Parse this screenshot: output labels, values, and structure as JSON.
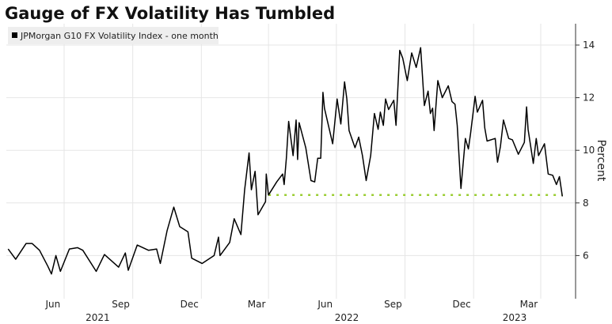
{
  "chart_data": {
    "type": "line",
    "title": "Gauge of FX Volatility Has Tumbled",
    "legend": "JPMorgan G10 FX Volatility Index - one month",
    "legend_placement": "top-left",
    "ylabel": "Percent",
    "y_axis_side": "right",
    "ylim": [
      4.4,
      14.8
    ],
    "yticks": [
      6,
      8,
      10,
      12,
      14
    ],
    "xlim": [
      "2021-04-15",
      "2023-05-02"
    ],
    "x_tick_labels": [
      {
        "label": "Jun",
        "date": "2021-06-16"
      },
      {
        "label": "Sep",
        "date": "2021-09-15"
      },
      {
        "label": "Dec",
        "date": "2021-12-16"
      },
      {
        "label": "Mar",
        "date": "2022-03-16"
      },
      {
        "label": "Jun",
        "date": "2022-06-16"
      },
      {
        "label": "Sep",
        "date": "2022-09-15"
      },
      {
        "label": "Dec",
        "date": "2022-12-16"
      },
      {
        "label": "Mar",
        "date": "2023-03-16"
      }
    ],
    "x_gridlines": [
      "2021-07-01",
      "2021-10-01",
      "2022-01-01",
      "2022-04-01",
      "2022-07-01",
      "2022-10-01",
      "2023-01-01",
      "2023-04-01"
    ],
    "year_labels": [
      {
        "label": "2021",
        "date": "2021-08-15"
      },
      {
        "label": "2022",
        "date": "2022-07-15"
      },
      {
        "label": "2023",
        "date": "2023-02-25"
      }
    ],
    "grid": true,
    "colors": {
      "line": "#000000",
      "reference": "#9acd32",
      "grid": "#e6e6e6",
      "legend_bg": "#eeeeee"
    },
    "reference_line": {
      "value": 8.3,
      "start": "2022-04-01",
      "end": "2023-04-30",
      "style": "dotted"
    },
    "series": [
      {
        "x": [
          "2021-04-17",
          "2021-04-27",
          "2021-05-11",
          "2021-05-19",
          "2021-05-29",
          "2021-06-09",
          "2021-06-14",
          "2021-06-20",
          "2021-06-26",
          "2021-07-08",
          "2021-07-19",
          "2021-07-26",
          "2021-08-13",
          "2021-08-24",
          "2021-09-12",
          "2021-09-21",
          "2021-09-25",
          "2021-10-07",
          "2021-10-22",
          "2021-11-02",
          "2021-11-07",
          "2021-11-16",
          "2021-11-25",
          "2021-12-03",
          "2021-12-14",
          "2021-12-19",
          "2022-01-02",
          "2022-01-18",
          "2022-01-24",
          "2022-01-26",
          "2022-02-08",
          "2022-02-14",
          "2022-02-23",
          "2022-02-28",
          "2022-03-06",
          "2022-03-09",
          "2022-03-14",
          "2022-03-18",
          "2022-03-28",
          "2022-03-29",
          "2022-04-01",
          "2022-04-12",
          "2022-04-20",
          "2022-04-22",
          "2022-04-25",
          "2022-04-28",
          "2022-05-04",
          "2022-05-08",
          "2022-05-10",
          "2022-05-12",
          "2022-05-21",
          "2022-05-28",
          "2022-06-02",
          "2022-06-06",
          "2022-06-10",
          "2022-06-13",
          "2022-06-15",
          "2022-06-26",
          "2022-07-02",
          "2022-07-07",
          "2022-07-12",
          "2022-07-15",
          "2022-07-18",
          "2022-07-26",
          "2022-07-31",
          "2022-08-05",
          "2022-08-10",
          "2022-08-16",
          "2022-08-21",
          "2022-08-26",
          "2022-08-29",
          "2022-09-02",
          "2022-09-05",
          "2022-09-09",
          "2022-09-16",
          "2022-09-19",
          "2022-09-24",
          "2022-09-28",
          "2022-10-04",
          "2022-10-10",
          "2022-10-16",
          "2022-10-22",
          "2022-10-27",
          "2022-11-01",
          "2022-11-04",
          "2022-11-07",
          "2022-11-09",
          "2022-11-14",
          "2022-11-20",
          "2022-11-28",
          "2022-12-03",
          "2022-12-07",
          "2022-12-10",
          "2022-12-15",
          "2022-12-21",
          "2022-12-25",
          "2022-12-28",
          "2023-01-03",
          "2023-01-06",
          "2023-01-13",
          "2023-01-16",
          "2023-01-19",
          "2023-01-30",
          "2023-02-02",
          "2023-02-06",
          "2023-02-10",
          "2023-02-17",
          "2023-02-22",
          "2023-03-02",
          "2023-03-10",
          "2023-03-13",
          "2023-03-15",
          "2023-03-22",
          "2023-03-26",
          "2023-03-29",
          "2023-04-06",
          "2023-04-11",
          "2023-04-17",
          "2023-04-22",
          "2023-04-26",
          "2023-04-30"
        ],
        "y": [
          6.25,
          5.86,
          6.46,
          6.46,
          6.2,
          5.6,
          5.3,
          6.0,
          5.4,
          6.25,
          6.3,
          6.2,
          5.4,
          6.04,
          5.56,
          6.1,
          5.44,
          6.4,
          6.2,
          6.25,
          5.7,
          6.94,
          7.84,
          7.1,
          6.9,
          5.9,
          5.7,
          6.0,
          6.7,
          6.0,
          6.5,
          7.4,
          6.8,
          8.5,
          9.9,
          8.5,
          9.2,
          7.55,
          8.05,
          9.1,
          8.3,
          8.8,
          9.1,
          8.7,
          9.7,
          11.1,
          9.8,
          11.15,
          9.65,
          11.05,
          10.1,
          8.85,
          8.8,
          9.7,
          9.7,
          12.2,
          11.6,
          10.25,
          11.95,
          11.0,
          12.6,
          11.95,
          10.75,
          10.1,
          10.5,
          9.8,
          8.85,
          9.8,
          11.4,
          10.8,
          11.45,
          10.95,
          11.95,
          11.55,
          11.9,
          10.95,
          13.8,
          13.5,
          12.65,
          13.7,
          13.15,
          13.9,
          11.7,
          12.25,
          11.4,
          11.6,
          10.75,
          12.65,
          12.0,
          12.45,
          11.85,
          11.75,
          10.95,
          8.55,
          10.45,
          10.05,
          10.65,
          12.05,
          11.45,
          11.9,
          10.85,
          10.35,
          10.45,
          9.55,
          10.15,
          11.15,
          10.45,
          10.4,
          9.85,
          10.3,
          11.65,
          10.8,
          9.5,
          10.45,
          9.8,
          10.25,
          9.1,
          9.05,
          8.7,
          9.0,
          8.25
        ]
      }
    ]
  }
}
